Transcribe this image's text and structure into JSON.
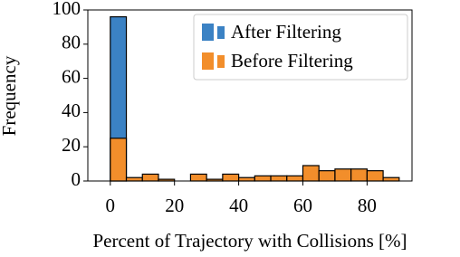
{
  "chart_data": {
    "type": "histogram",
    "x_label": "Percent of Trajectory with Collisions [%]",
    "y_label": "Frequency",
    "bins": [
      0,
      5,
      10,
      15,
      20,
      25,
      30,
      35,
      40,
      45,
      50,
      55,
      60,
      65,
      70,
      75,
      80,
      85,
      90
    ],
    "series": [
      {
        "name": "After Filtering",
        "color": "#3b82c4",
        "values": [
          96,
          0,
          0,
          0,
          0,
          0,
          0,
          0,
          0,
          0,
          0,
          0,
          0,
          0,
          0,
          0,
          0,
          0
        ]
      },
      {
        "name": "Before Filtering",
        "color": "#f28e2b",
        "values": [
          25,
          2,
          4,
          1,
          0,
          4,
          1,
          4,
          2,
          3,
          3,
          3,
          9,
          6,
          7,
          7,
          6,
          2
        ]
      }
    ],
    "xlim": [
      -7,
      94
    ],
    "ylim": [
      0,
      100
    ],
    "xticks": [
      0,
      20,
      40,
      60,
      80
    ],
    "yticks": [
      0,
      20,
      40,
      60,
      80,
      100
    ],
    "grid": false,
    "legend": "upper right"
  }
}
